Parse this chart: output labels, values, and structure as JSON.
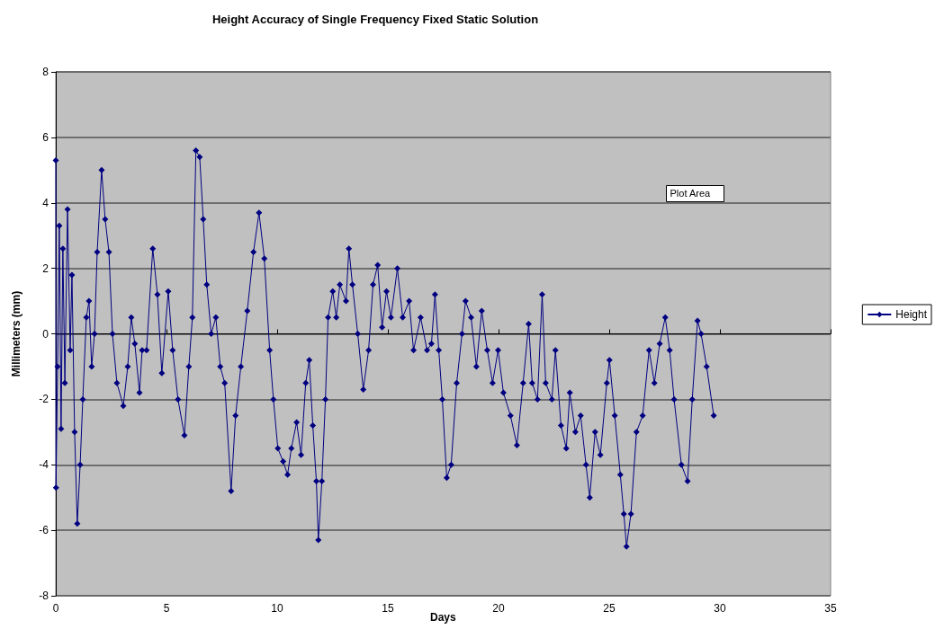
{
  "chart_data": {
    "type": "line",
    "title": "Height Accuracy of Single Frequency Fixed Static Solution",
    "xlabel": "Days",
    "ylabel": "Millimeters (mm)",
    "annotations": [
      "Plot Area"
    ],
    "x": [
      0,
      0.01,
      0.08,
      0.16,
      0.24,
      0.32,
      0.41,
      0.53,
      0.65,
      0.73,
      0.85,
      0.97,
      1.1,
      1.22,
      1.38,
      1.5,
      1.62,
      1.75,
      1.87,
      2.07,
      2.23,
      2.4,
      2.56,
      2.76,
      3.05,
      3.25,
      3.41,
      3.57,
      3.78,
      3.9,
      4.1,
      4.38,
      4.59,
      4.79,
      5.08,
      5.28,
      5.52,
      5.81,
      6.01,
      6.17,
      6.33,
      6.5,
      6.66,
      6.82,
      7.02,
      7.23,
      7.43,
      7.63,
      7.92,
      8.12,
      8.36,
      8.65,
      8.93,
      9.18,
      9.42,
      9.66,
      9.83,
      10.03,
      10.27,
      10.47,
      10.64,
      10.88,
      11.08,
      11.29,
      11.45,
      11.61,
      11.77,
      11.86,
      12.02,
      12.18,
      12.3,
      12.51,
      12.67,
      12.83,
      13.11,
      13.24,
      13.4,
      13.64,
      13.89,
      14.13,
      14.33,
      14.54,
      14.74,
      14.94,
      15.14,
      15.43,
      15.67,
      15.96,
      16.16,
      16.48,
      16.77,
      16.97,
      17.13,
      17.3,
      17.46,
      17.66,
      17.86,
      18.11,
      18.35,
      18.51,
      18.76,
      19.0,
      19.24,
      19.49,
      19.73,
      19.98,
      20.22,
      20.54,
      20.83,
      21.11,
      21.36,
      21.52,
      21.76,
      21.97,
      22.13,
      22.41,
      22.57,
      22.82,
      23.06,
      23.22,
      23.47,
      23.71,
      23.95,
      24.12,
      24.36,
      24.6,
      24.89,
      25.01,
      25.25,
      25.5,
      25.66,
      25.78,
      25.98,
      26.23,
      26.51,
      26.8,
      27.04,
      27.28,
      27.53,
      27.73,
      27.93,
      28.26,
      28.54,
      28.75,
      28.99,
      29.15,
      29.4,
      29.72
    ],
    "series": [
      {
        "name": "Height",
        "color": "#000080",
        "values": [
          5.3,
          -4.7,
          -1,
          3.3,
          -2.9,
          2.6,
          -1.5,
          3.8,
          -0.5,
          1.8,
          -3,
          -5.8,
          -4,
          -2,
          0.5,
          1.0,
          -1,
          0,
          2.5,
          5.0,
          3.5,
          2.5,
          0,
          -1.5,
          -2.2,
          -1.0,
          0.5,
          -0.3,
          -1.8,
          -0.5,
          -0.5,
          2.6,
          1.2,
          -1.2,
          1.3,
          -0.5,
          -2,
          -3.1,
          -1,
          0.5,
          5.6,
          5.4,
          3.5,
          1.5,
          0,
          0.5,
          -1,
          -1.5,
          -4.8,
          -2.5,
          -1,
          0.7,
          2.5,
          3.7,
          2.3,
          -0.5,
          -2,
          -3.5,
          -3.9,
          -4.3,
          -3.5,
          -2.7,
          -3.7,
          -1.5,
          -0.8,
          -2.8,
          -4.5,
          -6.3,
          -4.5,
          -2,
          0.5,
          1.3,
          0.5,
          1.5,
          1.0,
          2.6,
          1.5,
          0,
          -1.7,
          -0.5,
          1.5,
          2.1,
          0.2,
          1.3,
          0.5,
          2.0,
          0.5,
          1.0,
          -0.5,
          0.5,
          -0.5,
          -0.3,
          1.2,
          -0.5,
          -2,
          -4.4,
          -4.0,
          -1.5,
          0,
          1.0,
          0.5,
          -1,
          0.7,
          -0.5,
          -1.5,
          -0.5,
          -1.8,
          -2.5,
          -3.4,
          -1.5,
          0.3,
          -1.5,
          -2,
          1.2,
          -1.5,
          -2,
          -0.5,
          -2.8,
          -3.5,
          -1.8,
          -3.0,
          -2.5,
          -4.0,
          -5.0,
          -3.0,
          -3.7,
          -1.5,
          -0.8,
          -2.5,
          -4.3,
          -5.5,
          -6.5,
          -5.5,
          -3,
          -2.5,
          -0.5,
          -1.5,
          -0.3,
          0.5,
          -0.5,
          -2,
          -4,
          -4.5,
          -2.0,
          0.4,
          0,
          -1,
          -2.5
        ]
      }
    ],
    "xlim": [
      0,
      35
    ],
    "xticks": [
      0,
      5,
      10,
      15,
      20,
      25,
      30,
      35
    ],
    "ylim": [
      -8,
      8
    ],
    "yticks": [
      -8,
      -6,
      -4,
      -2,
      0,
      2,
      4,
      6,
      8
    ],
    "grid": "y",
    "legend": "right",
    "marker": "diamond",
    "line_style": "solid"
  }
}
